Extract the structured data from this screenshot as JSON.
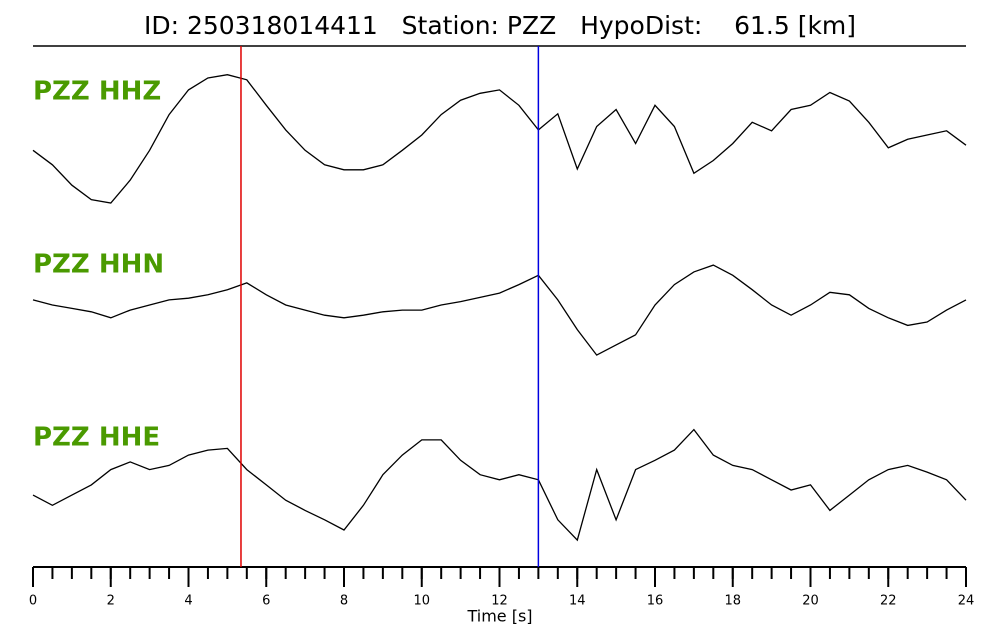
{
  "chart_data": {
    "type": "line",
    "title": "ID: 250318014411   Station: PZZ   HypoDist:    61.5 [km]",
    "x_label": "Time [s]",
    "xlim": [
      0,
      24
    ],
    "xticks": [
      0,
      2,
      4,
      6,
      8,
      10,
      12,
      14,
      16,
      18,
      20,
      22,
      24
    ],
    "xminorticks": [
      0,
      0.5,
      1,
      1.5,
      2,
      2.5,
      3,
      3.5,
      4,
      4.5,
      5,
      5.5,
      6,
      6.5,
      7,
      7.5,
      8,
      8.5,
      9,
      9.5,
      10,
      10.5,
      11,
      11.5,
      12,
      12.5,
      13,
      13.5,
      14,
      14.5,
      15,
      15.5,
      16,
      16.5,
      17,
      17.5,
      18,
      18.5,
      19,
      19.5,
      20,
      20.5,
      21,
      21.5,
      22,
      22.5,
      23,
      23.5,
      24
    ],
    "ylim": [
      -1,
      1
    ],
    "label_color": "#4a9a00",
    "x": [
      0,
      0.5,
      1,
      1.5,
      2,
      2.5,
      3,
      3.5,
      4,
      4.5,
      5,
      5.5,
      6,
      6.5,
      7,
      7.5,
      8,
      8.5,
      9,
      9.5,
      10,
      10.5,
      11,
      11.5,
      12,
      12.5,
      13,
      13.5,
      14,
      14.5,
      15,
      15.5,
      16,
      16.5,
      17,
      17.5,
      18,
      18.5,
      19,
      19.5,
      20,
      20.5,
      21,
      21.5,
      22,
      22.5,
      23,
      23.5,
      24
    ],
    "series": [
      {
        "name": "PZZ HHZ",
        "color": "#000000",
        "values": [
          -0.18,
          -0.35,
          -0.59,
          -0.76,
          -0.8,
          -0.53,
          -0.18,
          0.24,
          0.53,
          0.67,
          0.71,
          0.65,
          0.35,
          0.06,
          -0.18,
          -0.35,
          -0.41,
          -0.41,
          -0.35,
          -0.18,
          0,
          0.24,
          0.41,
          0.49,
          0.53,
          0.35,
          0.06,
          0.25,
          -0.4,
          0.1,
          0.3,
          -0.1,
          0.35,
          0.1,
          -0.45,
          -0.3,
          -0.1,
          0.15,
          0.05,
          0.3,
          0.35,
          0.5,
          0.4,
          0.15,
          -0.15,
          -0.05,
          0,
          0.05,
          -0.12
        ]
      },
      {
        "name": "PZZ HHN",
        "color": "#000000",
        "values": [
          0.06,
          0,
          -0.04,
          -0.08,
          -0.15,
          -0.06,
          0,
          0.06,
          0.08,
          0.12,
          0.18,
          0.26,
          0.12,
          0,
          -0.06,
          -0.12,
          -0.15,
          -0.12,
          -0.08,
          -0.06,
          -0.06,
          0,
          0.04,
          0.09,
          0.14,
          0.24,
          0.35,
          0.06,
          -0.29,
          -0.59,
          -0.47,
          -0.35,
          0,
          0.24,
          0.39,
          0.47,
          0.35,
          0.18,
          0,
          -0.12,
          0,
          0.15,
          0.12,
          -0.04,
          -0.15,
          -0.24,
          -0.2,
          -0.06,
          0.06
        ]
      },
      {
        "name": "PZZ HHE",
        "color": "#000000",
        "values": [
          -0.06,
          -0.18,
          -0.06,
          0.06,
          0.24,
          0.33,
          0.24,
          0.29,
          0.41,
          0.47,
          0.49,
          0.24,
          0.06,
          -0.12,
          -0.24,
          -0.35,
          -0.47,
          -0.18,
          0.18,
          0.41,
          0.59,
          0.59,
          0.35,
          0.18,
          0.12,
          0.18,
          0.12,
          -0.35,
          -0.59,
          0.24,
          -0.35,
          0.24,
          0.35,
          0.47,
          0.71,
          0.41,
          0.29,
          0.24,
          0.12,
          0,
          0.06,
          -0.24,
          -0.06,
          0.12,
          0.24,
          0.29,
          0.21,
          0.12,
          -0.12
        ]
      }
    ],
    "markers": [
      {
        "x": 5.35,
        "color": "#e00000"
      },
      {
        "x": 13.0,
        "color": "#0000e0"
      }
    ]
  }
}
